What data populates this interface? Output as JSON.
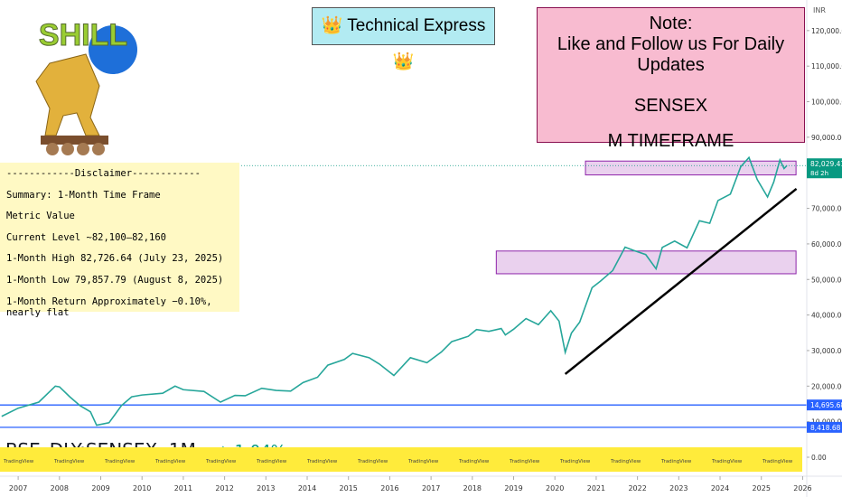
{
  "logo": {
    "text": "SHILL"
  },
  "banner": "👑 Technical Express👑",
  "note": {
    "lines": [
      "Note:",
      "Like and Follow us For Daily Updates",
      "SENSEX",
      "M TIMEFRAME"
    ]
  },
  "disclaimer": {
    "lines": [
      "------------Disclaimer------------",
      "Summary: 1-Month Time Frame",
      "Metric Value",
      "Current Level ~82,100–82,160",
      "1-Month High 82,726.64 (July 23, 2025)",
      "1-Month Low 79,857.79 (August 8, 2025)",
      "1-Month Return Approximately −0.10%, nearly flat"
    ]
  },
  "watermark": "TradingView",
  "chart_data": {
    "type": "line",
    "symbol": "BSE_DLY:SENSEX, 1M",
    "change": "▲ 1.04%",
    "currency": "INR",
    "color": "#26a69a",
    "x": [
      2006.6,
      2007.0,
      2007.5,
      2007.9,
      2008.0,
      2008.25,
      2008.5,
      2008.75,
      2008.9,
      2009.2,
      2009.5,
      2009.75,
      2010.0,
      2010.5,
      2010.8,
      2011.0,
      2011.5,
      2011.9,
      2012.25,
      2012.5,
      2012.9,
      2013.25,
      2013.6,
      2013.9,
      2014.25,
      2014.5,
      2014.9,
      2015.1,
      2015.5,
      2015.75,
      2016.1,
      2016.5,
      2016.9,
      2017.25,
      2017.5,
      2017.9,
      2018.1,
      2018.4,
      2018.7,
      2018.8,
      2019.0,
      2019.3,
      2019.6,
      2019.9,
      2020.1,
      2020.25,
      2020.4,
      2020.6,
      2020.9,
      2021.1,
      2021.4,
      2021.7,
      2021.9,
      2022.2,
      2022.45,
      2022.6,
      2022.9,
      2023.2,
      2023.5,
      2023.75,
      2023.95,
      2024.25,
      2024.5,
      2024.7,
      2024.9,
      2025.15,
      2025.3,
      2025.45,
      2025.55,
      2025.62
    ],
    "values": [
      11500,
      13800,
      15500,
      20000,
      19800,
      17000,
      14500,
      12800,
      9000,
      9700,
      14500,
      17000,
      17500,
      18000,
      20000,
      19000,
      18500,
      15500,
      17400,
      17300,
      19400,
      18800,
      18600,
      21000,
      22500,
      25900,
      27500,
      29200,
      28000,
      26200,
      23000,
      28000,
      26600,
      29600,
      32500,
      34000,
      35900,
      35400,
      36200,
      34400,
      36000,
      39000,
      37300,
      41200,
      38300,
      29500,
      34900,
      38000,
      47700,
      49500,
      52500,
      59100,
      58200,
      57000,
      53000,
      59000,
      60800,
      58900,
      66500,
      65800,
      72200,
      74000,
      81700,
      84300,
      78100,
      73200,
      77400,
      83600,
      81200,
      82029.41
    ],
    "xlim": [
      2006.56,
      2026.1
    ],
    "ylim": [
      -3560,
      128600
    ],
    "xticks": [
      2007,
      2008,
      2009,
      2010,
      2011,
      2012,
      2013,
      2014,
      2015,
      2016,
      2017,
      2018,
      2019,
      2020,
      2021,
      2022,
      2023,
      2024,
      2025,
      2026
    ],
    "yticks": [
      {
        "value": 0,
        "label": "0.00"
      },
      {
        "value": 10000,
        "label": "10,000.00"
      },
      {
        "value": 20000,
        "label": "20,000.00"
      },
      {
        "value": 30000,
        "label": "30,000.00"
      },
      {
        "value": 40000,
        "label": "40,000.00"
      },
      {
        "value": 50000,
        "label": "50,000.00"
      },
      {
        "value": 60000,
        "label": "60,000.00"
      },
      {
        "value": 70000,
        "label": "70,000.00"
      },
      {
        "value": 90000,
        "label": "90,000.00"
      },
      {
        "value": 100000,
        "label": "100,000.00"
      },
      {
        "value": 110000,
        "label": "110,000.00"
      },
      {
        "value": 120000,
        "label": "120,000.00"
      }
    ],
    "zones": [
      {
        "x": [
          2020.74,
          2025.84
        ],
        "from": 79400,
        "to": 83300
      },
      {
        "x": [
          2018.58,
          2025.84
        ],
        "from": 51600,
        "to": 58000
      }
    ],
    "trendline": {
      "x": [
        2020.25,
        2025.85
      ],
      "values": [
        23400,
        75500
      ]
    },
    "levels": [
      {
        "value": 14695.68,
        "label": "14,695.68",
        "color": "#2962ff"
      },
      {
        "value": 8418.68,
        "label": "8,418.68",
        "color": "#2962ff"
      }
    ],
    "price": {
      "value": 82029.41,
      "label": "82,029.41",
      "countdown": "8d 2h",
      "color": "#089981"
    }
  }
}
